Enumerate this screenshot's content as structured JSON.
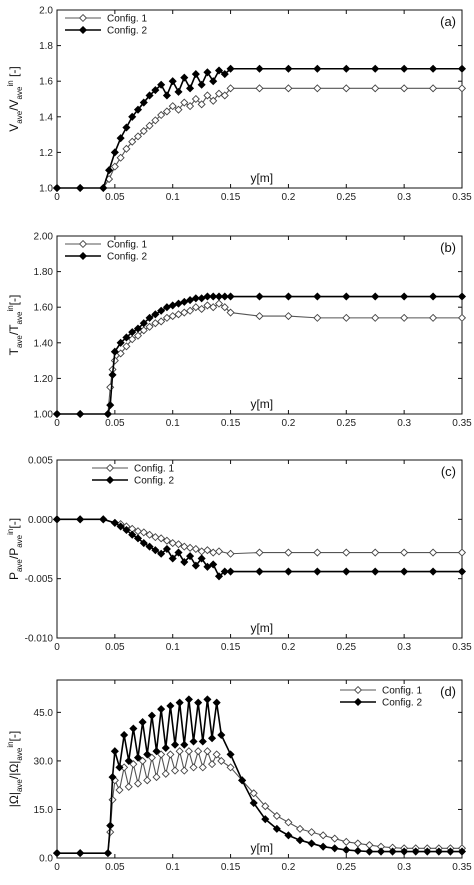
{
  "chart_data": [
    {
      "type": "line",
      "panel_label": "(a)",
      "xlabel": "y[m]",
      "ylabel": "V_ave/V_ave^in [-]",
      "ylabel_main": "V",
      "ylabel_sub": "ave",
      "ylabel_slash": "/V",
      "ylabel_sub2": "ave",
      "ylabel_sup": "in",
      "ylabel_unit": " [-]",
      "xlim": [
        0,
        0.35
      ],
      "ylim": [
        1.0,
        2.0
      ],
      "xticks": [
        0,
        0.05,
        0.1,
        0.15,
        0.2,
        0.25,
        0.3,
        0.35
      ],
      "xtick_labels": [
        "0",
        "0.05",
        "0.1",
        "0.15",
        "0.2",
        "0.25",
        "0.3",
        "0.35"
      ],
      "yticks": [
        1.0,
        1.2,
        1.4,
        1.6,
        1.8,
        2.0
      ],
      "ytick_labels": [
        "1.0",
        "1.2",
        "1.4",
        "1.6",
        "1.8",
        "2.0"
      ],
      "legend_position": "top-left",
      "series": [
        {
          "name": "Config. 1",
          "marker": "open-diamond",
          "x": [
            0,
            0.02,
            0.04,
            0.045,
            0.05,
            0.055,
            0.06,
            0.065,
            0.07,
            0.075,
            0.08,
            0.085,
            0.09,
            0.095,
            0.1,
            0.105,
            0.11,
            0.115,
            0.12,
            0.125,
            0.13,
            0.135,
            0.14,
            0.145,
            0.15,
            0.175,
            0.2,
            0.225,
            0.25,
            0.275,
            0.3,
            0.325,
            0.35
          ],
          "y": [
            1.0,
            1.0,
            1.0,
            1.05,
            1.12,
            1.17,
            1.22,
            1.26,
            1.29,
            1.32,
            1.35,
            1.38,
            1.41,
            1.43,
            1.46,
            1.44,
            1.48,
            1.46,
            1.5,
            1.47,
            1.52,
            1.49,
            1.53,
            1.52,
            1.56,
            1.56,
            1.56,
            1.56,
            1.56,
            1.56,
            1.56,
            1.56,
            1.56
          ]
        },
        {
          "name": "Config. 2",
          "marker": "filled-diamond",
          "x": [
            0,
            0.02,
            0.04,
            0.045,
            0.05,
            0.055,
            0.06,
            0.065,
            0.07,
            0.075,
            0.08,
            0.085,
            0.09,
            0.095,
            0.1,
            0.105,
            0.11,
            0.115,
            0.12,
            0.125,
            0.13,
            0.135,
            0.14,
            0.145,
            0.15,
            0.175,
            0.2,
            0.225,
            0.25,
            0.275,
            0.3,
            0.325,
            0.35
          ],
          "y": [
            1.0,
            1.0,
            1.0,
            1.1,
            1.2,
            1.28,
            1.34,
            1.4,
            1.44,
            1.48,
            1.52,
            1.55,
            1.58,
            1.52,
            1.6,
            1.54,
            1.62,
            1.56,
            1.64,
            1.58,
            1.65,
            1.6,
            1.66,
            1.64,
            1.67,
            1.67,
            1.67,
            1.67,
            1.67,
            1.67,
            1.67,
            1.67,
            1.67
          ]
        }
      ]
    },
    {
      "type": "line",
      "panel_label": "(b)",
      "xlabel": "y[m]",
      "ylabel": "T_ave/T_ave^in [-]",
      "ylabel_main": "T",
      "ylabel_sub": "ave",
      "ylabel_slash": "/T",
      "ylabel_sub2": "ave",
      "ylabel_sup": "in",
      "ylabel_unit": "[-]",
      "xlim": [
        0,
        0.35
      ],
      "ylim": [
        1.0,
        2.0
      ],
      "xticks": [
        0,
        0.05,
        0.1,
        0.15,
        0.2,
        0.25,
        0.3,
        0.35
      ],
      "xtick_labels": [
        "0",
        "0.05",
        "0.1",
        "0.15",
        "0.2",
        "0.25",
        "0.3",
        "0.35"
      ],
      "yticks": [
        1.0,
        1.2,
        1.4,
        1.6,
        1.8,
        2.0
      ],
      "ytick_labels": [
        "1.00",
        "1.20",
        "1.40",
        "1.60",
        "1.80",
        "2.00"
      ],
      "legend_position": "top-left",
      "series": [
        {
          "name": "Config. 1",
          "marker": "open-diamond",
          "x": [
            0,
            0.02,
            0.044,
            0.046,
            0.048,
            0.05,
            0.055,
            0.06,
            0.065,
            0.07,
            0.075,
            0.08,
            0.085,
            0.09,
            0.095,
            0.1,
            0.105,
            0.11,
            0.115,
            0.12,
            0.125,
            0.13,
            0.135,
            0.14,
            0.145,
            0.15,
            0.175,
            0.2,
            0.225,
            0.25,
            0.275,
            0.3,
            0.325,
            0.35
          ],
          "y": [
            1.0,
            1.0,
            1.0,
            1.15,
            1.25,
            1.3,
            1.34,
            1.38,
            1.42,
            1.44,
            1.47,
            1.49,
            1.51,
            1.52,
            1.54,
            1.55,
            1.56,
            1.57,
            1.58,
            1.6,
            1.59,
            1.61,
            1.6,
            1.62,
            1.6,
            1.57,
            1.55,
            1.55,
            1.54,
            1.54,
            1.54,
            1.54,
            1.54,
            1.54
          ]
        },
        {
          "name": "Config. 2",
          "marker": "filled-diamond",
          "x": [
            0,
            0.02,
            0.044,
            0.046,
            0.048,
            0.05,
            0.055,
            0.06,
            0.065,
            0.07,
            0.075,
            0.08,
            0.085,
            0.09,
            0.095,
            0.1,
            0.105,
            0.11,
            0.115,
            0.12,
            0.125,
            0.13,
            0.135,
            0.14,
            0.145,
            0.15,
            0.175,
            0.2,
            0.225,
            0.25,
            0.275,
            0.3,
            0.325,
            0.35
          ],
          "y": [
            1.0,
            1.0,
            1.0,
            1.05,
            1.22,
            1.35,
            1.4,
            1.43,
            1.46,
            1.48,
            1.51,
            1.54,
            1.56,
            1.58,
            1.6,
            1.61,
            1.62,
            1.63,
            1.64,
            1.65,
            1.65,
            1.66,
            1.66,
            1.66,
            1.66,
            1.66,
            1.66,
            1.66,
            1.66,
            1.66,
            1.66,
            1.66,
            1.66,
            1.66
          ]
        }
      ]
    },
    {
      "type": "line",
      "panel_label": "(c)",
      "xlabel": "y[m]",
      "ylabel": "P_ave/P_ave^in [-]",
      "ylabel_main": "P",
      "ylabel_sub": "ave",
      "ylabel_slash": "/P",
      "ylabel_sub2": "ave",
      "ylabel_sup": "in",
      "ylabel_unit": "[-]",
      "xlim": [
        0,
        0.35
      ],
      "ylim": [
        -0.01,
        0.005
      ],
      "xticks": [
        0,
        0.05,
        0.1,
        0.15,
        0.2,
        0.25,
        0.3,
        0.35
      ],
      "xtick_labels": [
        "0",
        "0.05",
        "0.1",
        "0.15",
        "0.2",
        "0.25",
        "0.3",
        "0.35"
      ],
      "yticks": [
        -0.01,
        -0.005,
        0.0,
        0.005
      ],
      "ytick_labels": [
        "-0.010",
        "-0.005",
        "0.000",
        "0.005"
      ],
      "legend_position": "top-center",
      "series": [
        {
          "name": "Config. 1",
          "marker": "open-diamond",
          "x": [
            0,
            0.02,
            0.04,
            0.05,
            0.055,
            0.06,
            0.065,
            0.07,
            0.075,
            0.08,
            0.085,
            0.09,
            0.095,
            0.1,
            0.105,
            0.11,
            0.115,
            0.12,
            0.125,
            0.13,
            0.135,
            0.14,
            0.15,
            0.175,
            0.2,
            0.225,
            0.25,
            0.275,
            0.3,
            0.325,
            0.35
          ],
          "y": [
            0.0,
            0.0,
            0.0,
            -0.0003,
            -0.0004,
            -0.0006,
            -0.0008,
            -0.001,
            -0.0011,
            -0.0013,
            -0.0015,
            -0.0016,
            -0.0018,
            -0.002,
            -0.0021,
            -0.0023,
            -0.0024,
            -0.0025,
            -0.0027,
            -0.0026,
            -0.0028,
            -0.0027,
            -0.0029,
            -0.0028,
            -0.0028,
            -0.0028,
            -0.0028,
            -0.0028,
            -0.0028,
            -0.0028,
            -0.0028
          ]
        },
        {
          "name": "Config. 2",
          "marker": "filled-diamond",
          "x": [
            0,
            0.02,
            0.04,
            0.05,
            0.055,
            0.06,
            0.065,
            0.07,
            0.075,
            0.08,
            0.085,
            0.09,
            0.095,
            0.1,
            0.105,
            0.11,
            0.115,
            0.12,
            0.125,
            0.13,
            0.135,
            0.14,
            0.145,
            0.15,
            0.175,
            0.2,
            0.225,
            0.25,
            0.275,
            0.3,
            0.325,
            0.35
          ],
          "y": [
            0.0,
            0.0,
            0.0,
            -0.0003,
            -0.0006,
            -0.0009,
            -0.0013,
            -0.0016,
            -0.002,
            -0.0023,
            -0.0026,
            -0.0029,
            -0.0025,
            -0.0033,
            -0.0028,
            -0.0036,
            -0.0031,
            -0.0039,
            -0.0033,
            -0.004,
            -0.0038,
            -0.0048,
            -0.0044,
            -0.0044,
            -0.0044,
            -0.0044,
            -0.0044,
            -0.0044,
            -0.0044,
            -0.0044,
            -0.0044,
            -0.0044
          ]
        }
      ]
    },
    {
      "type": "line",
      "panel_label": "(d)",
      "xlabel": "y[m]",
      "ylabel": "|Ω|_ave/|Ω|_ave^in [-]",
      "ylabel_main": "|Ω|",
      "ylabel_sub": "ave",
      "ylabel_slash": "/|Ω|",
      "ylabel_sub2": "ave",
      "ylabel_sup": "in",
      "ylabel_unit": "[-]",
      "xlim": [
        0,
        0.35
      ],
      "ylim": [
        0,
        55
      ],
      "xticks": [
        0,
        0.05,
        0.1,
        0.15,
        0.2,
        0.25,
        0.3,
        0.35
      ],
      "xtick_labels": [
        "0",
        "0.05",
        "0.1",
        "0.15",
        "0.2",
        "0.25",
        "0.3",
        "0.35"
      ],
      "yticks": [
        0,
        15,
        30,
        45
      ],
      "ytick_labels": [
        "0.0",
        "15.0",
        "30.0",
        "45.0"
      ],
      "legend_position": "top-right",
      "series": [
        {
          "name": "Config. 1",
          "marker": "open-diamond",
          "x": [
            0,
            0.02,
            0.044,
            0.046,
            0.048,
            0.05,
            0.054,
            0.058,
            0.062,
            0.066,
            0.07,
            0.074,
            0.078,
            0.082,
            0.086,
            0.09,
            0.094,
            0.098,
            0.102,
            0.106,
            0.11,
            0.114,
            0.118,
            0.122,
            0.126,
            0.13,
            0.134,
            0.138,
            0.142,
            0.15,
            0.16,
            0.17,
            0.18,
            0.19,
            0.2,
            0.21,
            0.22,
            0.23,
            0.24,
            0.25,
            0.26,
            0.27,
            0.28,
            0.29,
            0.3,
            0.31,
            0.32,
            0.33,
            0.34,
            0.35
          ],
          "y": [
            1.5,
            1.5,
            1.5,
            8,
            18,
            24,
            21,
            28,
            22,
            29,
            23,
            30,
            24,
            31,
            25,
            32,
            26,
            32,
            27,
            33,
            27,
            33,
            28,
            33,
            28,
            33,
            29,
            32,
            30,
            28,
            24,
            20,
            16,
            13,
            11,
            9,
            8,
            7,
            6,
            5,
            4.5,
            4,
            3.5,
            3.2,
            3,
            3,
            3,
            3,
            3,
            3
          ]
        },
        {
          "name": "Config. 2",
          "marker": "filled-diamond",
          "x": [
            0,
            0.02,
            0.044,
            0.046,
            0.048,
            0.05,
            0.054,
            0.058,
            0.062,
            0.066,
            0.07,
            0.074,
            0.078,
            0.082,
            0.086,
            0.09,
            0.094,
            0.098,
            0.102,
            0.106,
            0.11,
            0.114,
            0.118,
            0.122,
            0.126,
            0.13,
            0.134,
            0.138,
            0.142,
            0.15,
            0.16,
            0.17,
            0.18,
            0.19,
            0.2,
            0.21,
            0.22,
            0.23,
            0.24,
            0.25,
            0.26,
            0.27,
            0.28,
            0.29,
            0.3,
            0.31,
            0.32,
            0.33,
            0.34,
            0.35
          ],
          "y": [
            1.5,
            1.5,
            1.5,
            10,
            25,
            33,
            28,
            38,
            30,
            40,
            31,
            42,
            32,
            44,
            33,
            46,
            34,
            47,
            35,
            48,
            35,
            49,
            36,
            48,
            36,
            49,
            37,
            48,
            38,
            32,
            24,
            17,
            12,
            9,
            7,
            5.5,
            4.5,
            3.5,
            3,
            2.5,
            2.2,
            2,
            2,
            2,
            2,
            2,
            2,
            2,
            2,
            2
          ]
        }
      ]
    }
  ]
}
